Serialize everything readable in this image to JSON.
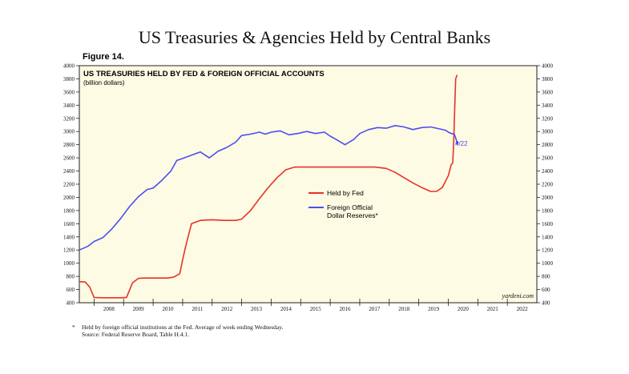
{
  "page_title": "US Treasuries & Agencies Held by Central Banks",
  "figure_label": "Figure 14.",
  "footnote": {
    "marker": "*",
    "line1": "Held by foreign official institutions at the Fed. Average of week ending Wednesday.",
    "line2": "Source: Federal Reserve Board, Table H.4.1."
  },
  "colors": {
    "plot_bg": "#fdfbe3",
    "fed": "#e8312b",
    "foreign": "#4d4df2"
  },
  "chart_data": {
    "type": "line",
    "title": "US TREASURIES HELD BY FED & FOREIGN OFFICIAL ACCOUNTS",
    "subtitle": "(billion dollars)",
    "watermark": "yardeni.com",
    "annotation": "4/22",
    "xlim": [
      2007.5,
      2023
    ],
    "ylim": [
      400,
      4000
    ],
    "y_ticks": [
      400,
      600,
      800,
      1000,
      1200,
      1400,
      1600,
      1800,
      2000,
      2200,
      2400,
      2600,
      2800,
      3000,
      3200,
      3400,
      3600,
      3800,
      4000
    ],
    "y_tick_labels": [
      "400",
      "600",
      "800",
      "1000",
      "1200",
      "1400",
      "1600",
      "1800",
      "2000",
      "2200",
      "2400",
      "2600",
      "2800",
      "3000",
      "3200",
      "3400",
      "3600",
      "3800",
      "4000"
    ],
    "x_tick_labels": [
      "2008",
      "2009",
      "2010",
      "2011",
      "2012",
      "2013",
      "2014",
      "2015",
      "2016",
      "2017",
      "2018",
      "2019",
      "2020",
      "2021",
      "2022"
    ],
    "legend_position": "center",
    "grid": false,
    "series": [
      {
        "name": "Held by Fed",
        "color": "#e8312b",
        "x": [
          2007.5,
          2007.7,
          2007.85,
          2008.0,
          2008.3,
          2008.6,
          2008.9,
          2009.1,
          2009.3,
          2009.5,
          2009.7,
          2009.9,
          2010.2,
          2010.5,
          2010.7,
          2010.9,
          2011.0,
          2011.1,
          2011.3,
          2011.6,
          2012.0,
          2012.4,
          2012.8,
          2013.0,
          2013.3,
          2013.6,
          2013.9,
          2014.2,
          2014.5,
          2014.8,
          2015.0,
          2015.5,
          2016.0,
          2016.5,
          2017.0,
          2017.5,
          2017.9,
          2018.2,
          2018.5,
          2018.8,
          2019.1,
          2019.4,
          2019.6,
          2019.8,
          2020.0,
          2020.1,
          2020.15,
          2020.18,
          2020.22,
          2020.25,
          2020.3
        ],
        "values": [
          720,
          715,
          640,
          480,
          475,
          475,
          475,
          480,
          700,
          770,
          775,
          775,
          775,
          775,
          790,
          840,
          1050,
          1250,
          1600,
          1650,
          1660,
          1650,
          1650,
          1670,
          1800,
          1980,
          2150,
          2300,
          2420,
          2460,
          2460,
          2460,
          2460,
          2460,
          2460,
          2460,
          2440,
          2380,
          2300,
          2220,
          2150,
          2090,
          2090,
          2150,
          2330,
          2500,
          2520,
          2800,
          3400,
          3800,
          3860
        ]
      },
      {
        "name": "Foreign Official Dollar Reserves*",
        "color": "#4d4df2",
        "x": [
          2007.5,
          2007.8,
          2008.0,
          2008.3,
          2008.6,
          2008.9,
          2009.2,
          2009.5,
          2009.8,
          2010.0,
          2010.3,
          2010.6,
          2010.8,
          2011.0,
          2011.3,
          2011.6,
          2011.9,
          2012.2,
          2012.5,
          2012.8,
          2013.0,
          2013.3,
          2013.6,
          2013.8,
          2014.0,
          2014.3,
          2014.6,
          2014.9,
          2015.2,
          2015.5,
          2015.8,
          2016.0,
          2016.2,
          2016.5,
          2016.8,
          2017.0,
          2017.3,
          2017.6,
          2017.9,
          2018.2,
          2018.5,
          2018.8,
          2019.1,
          2019.4,
          2019.7,
          2019.9,
          2020.0,
          2020.1,
          2020.2,
          2020.25,
          2020.3
        ],
        "values": [
          1200,
          1260,
          1330,
          1390,
          1520,
          1680,
          1860,
          2010,
          2120,
          2140,
          2260,
          2400,
          2560,
          2590,
          2640,
          2690,
          2600,
          2700,
          2760,
          2840,
          2940,
          2960,
          2990,
          2960,
          2990,
          3010,
          2950,
          2970,
          3000,
          2970,
          2990,
          2930,
          2880,
          2800,
          2880,
          2970,
          3030,
          3060,
          3050,
          3090,
          3070,
          3030,
          3060,
          3070,
          3040,
          3020,
          2990,
          2970,
          2960,
          2900,
          2830
        ]
      }
    ]
  }
}
